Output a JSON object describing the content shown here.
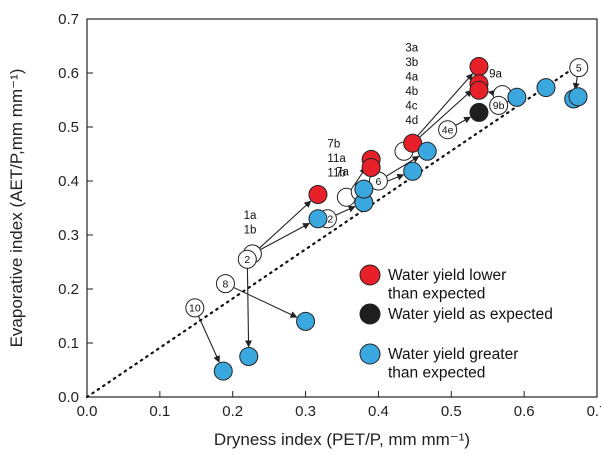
{
  "chart_data": {
    "type": "scatter",
    "xlabel": "Dryness index (PET/P, mm mm⁻¹)",
    "ylabel": "Evaporative index (AET/P,mm mm⁻¹)",
    "xlim": [
      0,
      0.7
    ],
    "ylim": [
      0,
      0.7
    ],
    "xticks": [
      "0.0",
      "0.1",
      "0.2",
      "0.3",
      "0.4",
      "0.5",
      "0.6",
      "0.7"
    ],
    "yticks": [
      "0.0",
      "0.1",
      "0.2",
      "0.3",
      "0.4",
      "0.5",
      "0.6",
      "0.7"
    ],
    "grid": false,
    "legend_position": "bottom-right",
    "colors": {
      "lower": "#e8202a",
      "as_expected": "#1e1e1e",
      "greater": "#3aa8df",
      "open": "#ffffff"
    },
    "legend": [
      {
        "key": "lower",
        "lines": [
          "Water yield lower",
          "than expected"
        ]
      },
      {
        "key": "as_expected",
        "lines": [
          "Water yield as expected"
        ]
      },
      {
        "key": "greater",
        "lines": [
          "Water yield greater",
          "than expected"
        ]
      }
    ],
    "reference_line": {
      "style": "dotted",
      "from": [
        0,
        0
      ],
      "to": [
        0.68,
        0.62
      ]
    },
    "open_points": [
      {
        "label": "",
        "x": 0.227,
        "y": 0.265
      },
      {
        "label": "2",
        "x": 0.22,
        "y": 0.255
      },
      {
        "label": "8",
        "x": 0.19,
        "y": 0.21
      },
      {
        "label": "10",
        "x": 0.148,
        "y": 0.165
      },
      {
        "label": "12",
        "x": 0.33,
        "y": 0.33
      },
      {
        "label": "",
        "x": 0.356,
        "y": 0.37
      },
      {
        "label": "",
        "x": 0.375,
        "y": 0.38
      },
      {
        "label": "6",
        "x": 0.4,
        "y": 0.4
      },
      {
        "label": "",
        "x": 0.435,
        "y": 0.455
      },
      {
        "label": "4e",
        "x": 0.495,
        "y": 0.495
      },
      {
        "label": "",
        "x": 0.57,
        "y": 0.56
      },
      {
        "label": "9b",
        "x": 0.565,
        "y": 0.54
      },
      {
        "label": "5",
        "x": 0.675,
        "y": 0.61
      }
    ],
    "filled_points": [
      {
        "series": "lower",
        "x": 0.317,
        "y": 0.375
      },
      {
        "series": "lower",
        "x": 0.39,
        "y": 0.44
      },
      {
        "series": "lower",
        "x": 0.39,
        "y": 0.425
      },
      {
        "series": "lower",
        "x": 0.447,
        "y": 0.47
      },
      {
        "series": "lower",
        "x": 0.538,
        "y": 0.612
      },
      {
        "series": "lower",
        "x": 0.538,
        "y": 0.58
      },
      {
        "series": "lower",
        "x": 0.538,
        "y": 0.568
      },
      {
        "series": "as_expected",
        "x": 0.538,
        "y": 0.527
      },
      {
        "series": "greater",
        "x": 0.187,
        "y": 0.048
      },
      {
        "series": "greater",
        "x": 0.222,
        "y": 0.075
      },
      {
        "series": "greater",
        "x": 0.3,
        "y": 0.14
      },
      {
        "series": "greater",
        "x": 0.317,
        "y": 0.33
      },
      {
        "series": "greater",
        "x": 0.38,
        "y": 0.36
      },
      {
        "series": "greater",
        "x": 0.38,
        "y": 0.385
      },
      {
        "series": "greater",
        "x": 0.447,
        "y": 0.418
      },
      {
        "series": "greater",
        "x": 0.467,
        "y": 0.455
      },
      {
        "series": "greater",
        "x": 0.59,
        "y": 0.555
      },
      {
        "series": "greater",
        "x": 0.63,
        "y": 0.573
      },
      {
        "series": "greater",
        "x": 0.668,
        "y": 0.552
      },
      {
        "series": "greater",
        "x": 0.674,
        "y": 0.556
      }
    ],
    "arrows": [
      {
        "from": [
          0.148,
          0.165
        ],
        "to": [
          0.187,
          0.048
        ]
      },
      {
        "from": [
          0.19,
          0.21
        ],
        "to": [
          0.3,
          0.14
        ]
      },
      {
        "from": [
          0.22,
          0.255
        ],
        "to": [
          0.222,
          0.075
        ]
      },
      {
        "from": [
          0.22,
          0.255
        ],
        "to": [
          0.317,
          0.375
        ]
      },
      {
        "from": [
          0.227,
          0.265
        ],
        "to": [
          0.317,
          0.33
        ]
      },
      {
        "from": [
          0.33,
          0.33
        ],
        "to": [
          0.38,
          0.36
        ]
      },
      {
        "from": [
          0.356,
          0.37
        ],
        "to": [
          0.39,
          0.44
        ]
      },
      {
        "from": [
          0.375,
          0.38
        ],
        "to": [
          0.447,
          0.418
        ]
      },
      {
        "from": [
          0.4,
          0.4
        ],
        "to": [
          0.467,
          0.455
        ]
      },
      {
        "from": [
          0.435,
          0.455
        ],
        "to": [
          0.538,
          0.612
        ]
      },
      {
        "from": [
          0.435,
          0.455
        ],
        "to": [
          0.538,
          0.58
        ]
      },
      {
        "from": [
          0.495,
          0.495
        ],
        "to": [
          0.538,
          0.527
        ]
      },
      {
        "from": [
          0.57,
          0.56
        ],
        "to": [
          0.538,
          0.568
        ]
      },
      {
        "from": [
          0.565,
          0.54
        ],
        "to": [
          0.59,
          0.555
        ]
      },
      {
        "from": [
          0.675,
          0.61
        ],
        "to": [
          0.668,
          0.552
        ]
      }
    ],
    "annotations": [
      {
        "lines": [
          "1a",
          "1b"
        ],
        "x": 0.215,
        "y": 0.33
      },
      {
        "lines": [
          "7b",
          "11a",
          "11b"
        ],
        "x": 0.33,
        "y": 0.462
      },
      {
        "lines": [
          "3a",
          "3b",
          "4a",
          "4b",
          "4c",
          "4d"
        ],
        "x": 0.437,
        "y": 0.64
      },
      {
        "lines": [
          "7a"
        ],
        "x": 0.342,
        "y": 0.41
      },
      {
        "lines": [
          "9a"
        ],
        "x": 0.552,
        "y": 0.592
      }
    ]
  }
}
